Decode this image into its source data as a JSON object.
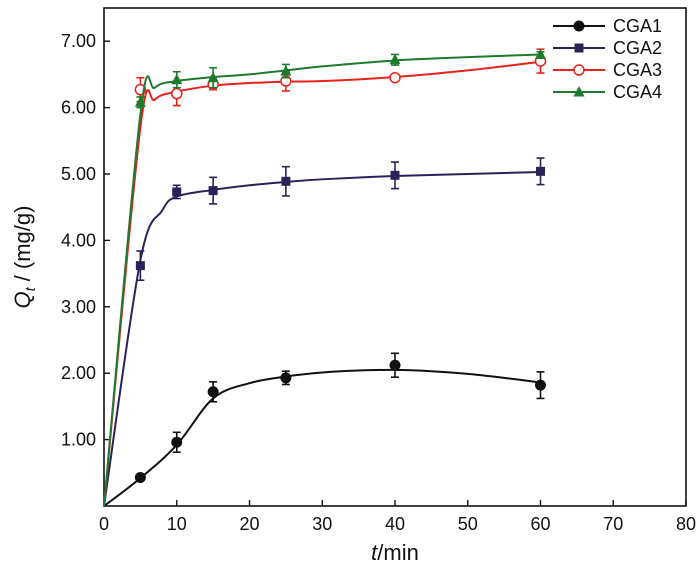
{
  "chart_data": {
    "type": "line",
    "xlabel": {
      "italic": "t",
      "rest": "/min"
    },
    "ylabel": {
      "italic": "Q",
      "sub": "t",
      "rest": " / (mg/g)"
    },
    "xlim": [
      0,
      80
    ],
    "ylim": [
      0,
      7.5
    ],
    "xticks": [
      0,
      10,
      20,
      30,
      40,
      50,
      60,
      70,
      80
    ],
    "xtick_labels": [
      "0",
      "10",
      "20",
      "30",
      "40",
      "50",
      "60",
      "70",
      "80"
    ],
    "yticks": [
      1,
      2,
      3,
      4,
      5,
      6,
      7
    ],
    "ytick_labels": [
      "1.00",
      "2.00",
      "3.00",
      "4.00",
      "5.00",
      "6.00",
      "7.00"
    ],
    "legend_position": "top-right",
    "series": [
      {
        "name": "CGA1",
        "color": "#111111",
        "marker": "circle-filled",
        "x": [
          5,
          10,
          15,
          25,
          40,
          60
        ],
        "y": [
          0.43,
          0.96,
          1.72,
          1.93,
          2.12,
          1.82
        ],
        "err": [
          0.04,
          0.15,
          0.15,
          0.1,
          0.18,
          0.2
        ],
        "fit": [
          [
            0,
            0
          ],
          [
            5,
            0.42
          ],
          [
            10,
            0.92
          ],
          [
            15,
            1.62
          ],
          [
            20,
            1.85
          ],
          [
            25,
            1.95
          ],
          [
            30,
            2.01
          ],
          [
            35,
            2.04
          ],
          [
            40,
            2.05
          ],
          [
            45,
            2.03
          ],
          [
            50,
            1.99
          ],
          [
            55,
            1.93
          ],
          [
            60,
            1.86
          ]
        ]
      },
      {
        "name": "CGA2",
        "color": "#2a2358",
        "marker": "square-filled",
        "x": [
          5,
          10,
          15,
          25,
          40,
          60
        ],
        "y": [
          3.62,
          4.73,
          4.75,
          4.89,
          4.98,
          5.04
        ],
        "err": [
          0.22,
          0.1,
          0.2,
          0.22,
          0.2,
          0.2
        ],
        "fit": [
          [
            0,
            0
          ],
          [
            5,
            3.7
          ],
          [
            8,
            4.45
          ],
          [
            10,
            4.66
          ],
          [
            15,
            4.76
          ],
          [
            20,
            4.83
          ],
          [
            25,
            4.88
          ],
          [
            30,
            4.92
          ],
          [
            40,
            4.97
          ],
          [
            50,
            5.0
          ],
          [
            60,
            5.03
          ]
        ]
      },
      {
        "name": "CGA3",
        "color": "#e8221a",
        "marker": "circle-open",
        "x": [
          5,
          10,
          15,
          25,
          40,
          60
        ],
        "y": [
          6.27,
          6.21,
          6.35,
          6.4,
          6.45,
          6.7
        ],
        "err": [
          0.18,
          0.18,
          0.08,
          0.15,
          0.05,
          0.18
        ],
        "fit": [
          [
            0,
            0
          ],
          [
            5,
            5.7
          ],
          [
            7,
            6.12
          ],
          [
            10,
            6.24
          ],
          [
            15,
            6.33
          ],
          [
            20,
            6.37
          ],
          [
            25,
            6.39
          ],
          [
            30,
            6.4
          ],
          [
            40,
            6.46
          ],
          [
            50,
            6.56
          ],
          [
            60,
            6.69
          ]
        ]
      },
      {
        "name": "CGA4",
        "color": "#1e7a2e",
        "marker": "triangle-filled",
        "x": [
          5,
          10,
          15,
          25,
          40,
          60
        ],
        "y": [
          6.08,
          6.42,
          6.45,
          6.55,
          6.72,
          6.8
        ],
        "err": [
          0.08,
          0.12,
          0.15,
          0.1,
          0.08,
          0.04
        ],
        "fit": [
          [
            0,
            0
          ],
          [
            5,
            5.9
          ],
          [
            7,
            6.3
          ],
          [
            10,
            6.4
          ],
          [
            15,
            6.46
          ],
          [
            20,
            6.5
          ],
          [
            25,
            6.56
          ],
          [
            30,
            6.62
          ],
          [
            40,
            6.71
          ],
          [
            50,
            6.76
          ],
          [
            60,
            6.8
          ]
        ]
      }
    ]
  }
}
